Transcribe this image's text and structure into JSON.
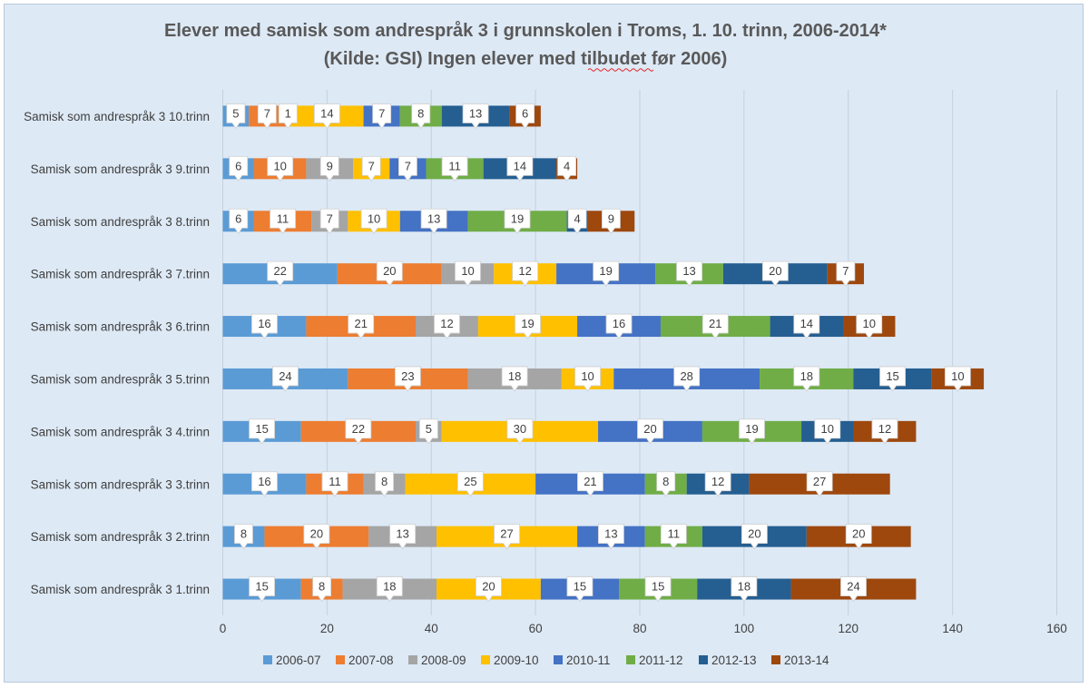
{
  "chart_data": {
    "type": "bar",
    "orientation": "horizontal",
    "stacked": true,
    "title_line1": "Elever med samisk som andrespråk 3 i grunnskolen i Troms, 1. 10. trinn, 2006-2014*",
    "title_line2": "(Kilde: GSI) Ingen elever med tilbudet før 2006)",
    "categories": [
      "Samisk som andrespråk 3 10.trinn",
      "Samisk som andrespråk 3 9.trinn",
      "Samisk som andrespråk 3 8.trinn",
      "Samisk som andrespråk 3 7.trinn",
      "Samisk som andrespråk 3 6.trinn",
      "Samisk som andrespråk 3 5.trinn",
      "Samisk som andrespråk 3 4.trinn",
      "Samisk som andrespråk 3 3.trinn",
      "Samisk som andrespråk 3 2.trinn",
      "Samisk som andrespråk 3 1.trinn"
    ],
    "series": [
      {
        "name": "2006-07",
        "color": "#5b9bd5",
        "values": [
          5,
          6,
          6,
          22,
          16,
          24,
          15,
          16,
          8,
          15
        ]
      },
      {
        "name": "2007-08",
        "color": "#ed7d31",
        "values": [
          7,
          10,
          11,
          20,
          21,
          23,
          22,
          11,
          20,
          8
        ]
      },
      {
        "name": "2008-09",
        "color": "#a5a5a5",
        "values": [
          1,
          9,
          7,
          10,
          12,
          18,
          5,
          8,
          13,
          18
        ]
      },
      {
        "name": "2009-10",
        "color": "#ffc000",
        "values": [
          14,
          7,
          10,
          12,
          19,
          10,
          30,
          25,
          27,
          20
        ]
      },
      {
        "name": "2010-11",
        "color": "#4472c4",
        "values": [
          7,
          7,
          13,
          19,
          16,
          28,
          20,
          21,
          13,
          15
        ]
      },
      {
        "name": "2011-12",
        "color": "#70ad47",
        "values": [
          8,
          11,
          19,
          13,
          21,
          18,
          19,
          8,
          11,
          15
        ]
      },
      {
        "name": "2012-13",
        "color": "#255e91",
        "values": [
          13,
          14,
          4,
          20,
          14,
          15,
          10,
          12,
          20,
          18
        ]
      },
      {
        "name": "2013-14",
        "color": "#9e480e",
        "values": [
          6,
          4,
          9,
          7,
          10,
          10,
          12,
          27,
          20,
          24
        ]
      }
    ],
    "xlim": [
      0,
      160
    ],
    "xticks": [
      "0",
      "20",
      "40",
      "60",
      "80",
      "100",
      "120",
      "140",
      "160"
    ],
    "grid": true,
    "data_labels": "callout",
    "legend_position": "bottom"
  }
}
